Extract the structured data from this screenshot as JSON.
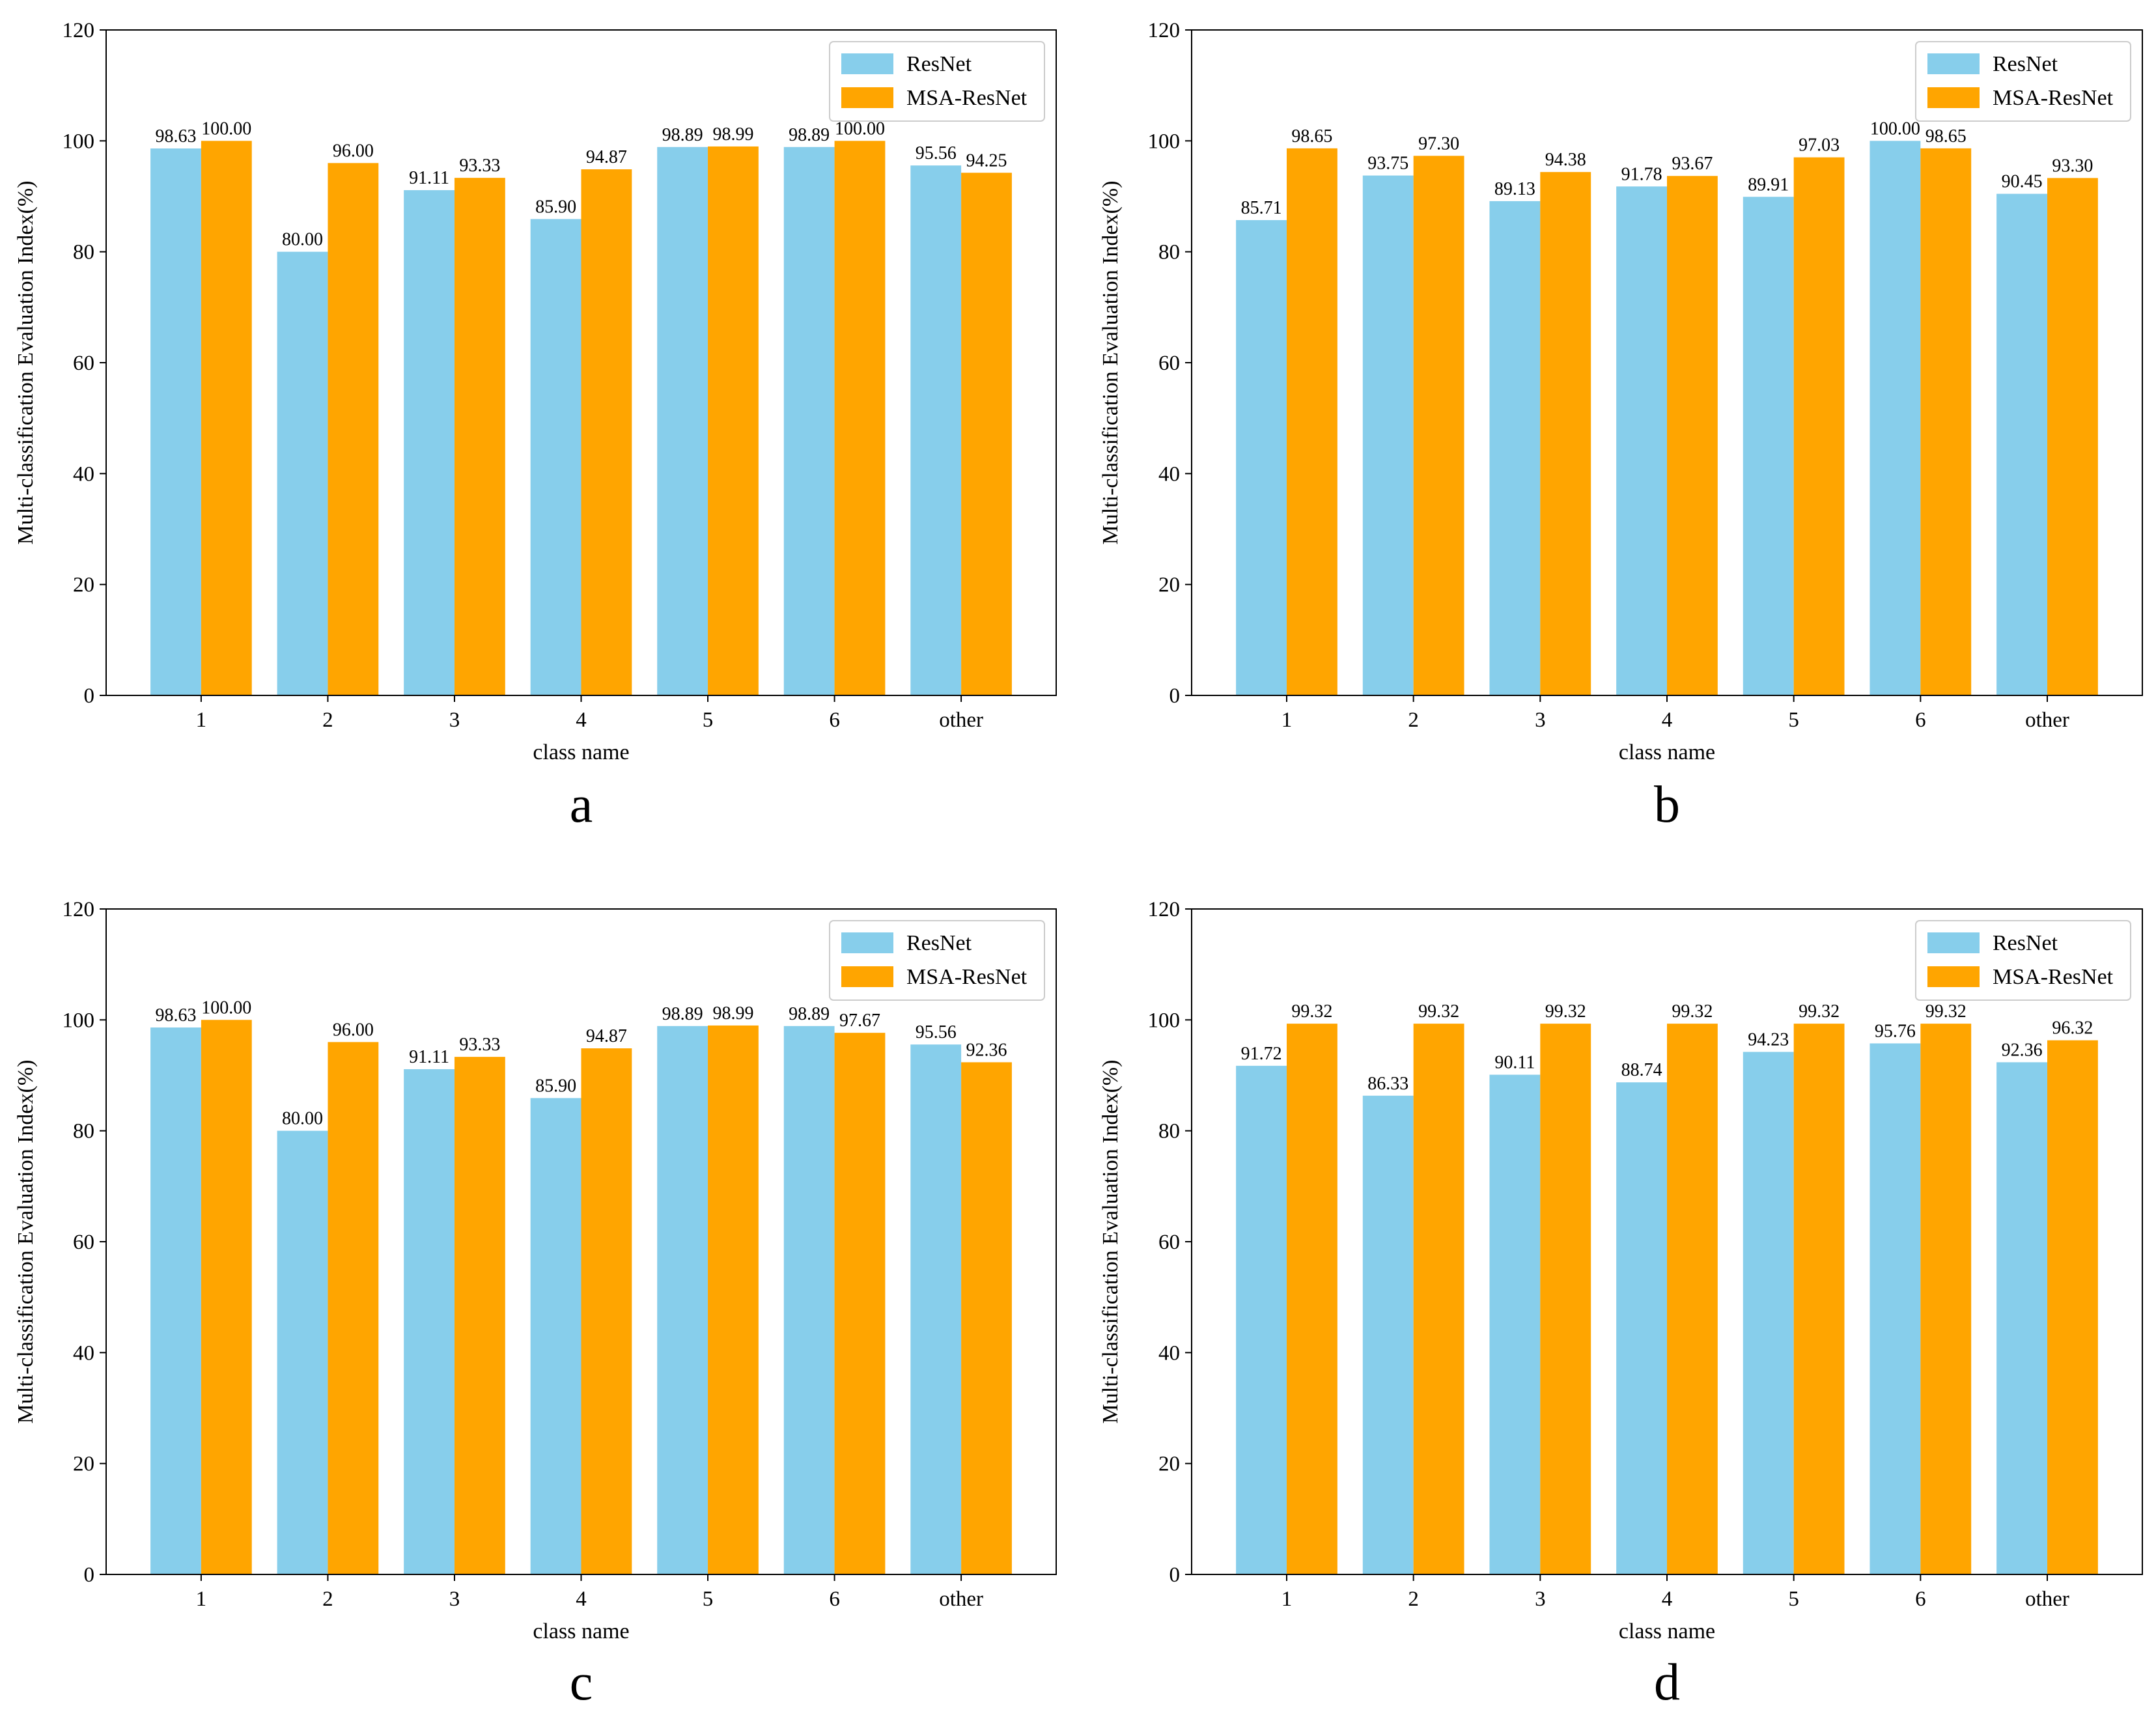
{
  "chart_data": [
    {
      "type": "bar",
      "panel": "a",
      "categories": [
        "1",
        "2",
        "3",
        "4",
        "5",
        "6",
        "other"
      ],
      "series": [
        {
          "name": "ResNet",
          "values": [
            98.63,
            80.0,
            91.11,
            85.9,
            98.89,
            98.89,
            95.56
          ],
          "labels": [
            "98.63",
            "80.00",
            "91.11",
            "85.90",
            "98.89",
            "98.89",
            "95.56"
          ]
        },
        {
          "name": "MSA-ResNet",
          "values": [
            100.0,
            96.0,
            93.33,
            94.87,
            98.99,
            100.0,
            94.25
          ],
          "labels": [
            "100.00",
            "96.00",
            "93.33",
            "94.87",
            "98.99",
            "100.00",
            "94.25"
          ]
        }
      ],
      "xlabel": "class name",
      "ylabel": "Multi-classification Evaluation Index(%)",
      "ylim": [
        0,
        120
      ],
      "yticks": [
        "0",
        "20",
        "40",
        "60",
        "80",
        "100",
        "120"
      ],
      "legend": "top-right"
    },
    {
      "type": "bar",
      "panel": "b",
      "categories": [
        "1",
        "2",
        "3",
        "4",
        "5",
        "6",
        "other"
      ],
      "series": [
        {
          "name": "ResNet",
          "values": [
            85.71,
            93.75,
            89.13,
            91.78,
            89.91,
            100.0,
            90.45
          ],
          "labels": [
            "85.71",
            "93.75",
            "89.13",
            "91.78",
            "89.91",
            "100.00",
            "90.45"
          ]
        },
        {
          "name": "MSA-ResNet",
          "values": [
            98.65,
            97.3,
            94.38,
            93.67,
            97.03,
            98.65,
            93.3
          ],
          "labels": [
            "98.65",
            "97.30",
            "94.38",
            "93.67",
            "97.03",
            "98.65",
            "93.30"
          ]
        }
      ],
      "xlabel": "class name",
      "ylabel": "Multi-classification Evaluation Index(%)",
      "ylim": [
        0,
        120
      ],
      "yticks": [
        "0",
        "20",
        "40",
        "60",
        "80",
        "100",
        "120"
      ],
      "legend": "top-right"
    },
    {
      "type": "bar",
      "panel": "c",
      "categories": [
        "1",
        "2",
        "3",
        "4",
        "5",
        "6",
        "other"
      ],
      "series": [
        {
          "name": "ResNet",
          "values": [
            98.63,
            80.0,
            91.11,
            85.9,
            98.89,
            98.89,
            95.56
          ],
          "labels": [
            "98.63",
            "80.00",
            "91.11",
            "85.90",
            "98.89",
            "98.89",
            "95.56"
          ]
        },
        {
          "name": "MSA-ResNet",
          "values": [
            100.0,
            96.0,
            93.33,
            94.87,
            98.99,
            97.67,
            92.36
          ],
          "labels": [
            "100.00",
            "96.00",
            "93.33",
            "94.87",
            "98.99",
            "97.67",
            "92.36"
          ]
        }
      ],
      "xlabel": "class name",
      "ylabel": "Multi-classification Evaluation Index(%)",
      "ylim": [
        0,
        120
      ],
      "yticks": [
        "0",
        "20",
        "40",
        "60",
        "80",
        "100",
        "120"
      ],
      "legend": "top-right"
    },
    {
      "type": "bar",
      "panel": "d",
      "categories": [
        "1",
        "2",
        "3",
        "4",
        "5",
        "6",
        "other"
      ],
      "series": [
        {
          "name": "ResNet",
          "values": [
            91.72,
            86.33,
            90.11,
            88.74,
            94.23,
            95.76,
            92.36
          ],
          "labels": [
            "91.72",
            "86.33",
            "90.11",
            "88.74",
            "94.23",
            "95.76",
            "92.36"
          ]
        },
        {
          "name": "MSA-ResNet",
          "values": [
            99.32,
            99.32,
            99.32,
            99.32,
            99.32,
            99.32,
            96.32
          ],
          "labels": [
            "99.32",
            "99.32",
            "99.32",
            "99.32",
            "99.32",
            "99.32",
            "96.32"
          ]
        }
      ],
      "xlabel": "class name",
      "ylabel": "Multi-classification Evaluation Index(%)",
      "ylim": [
        0,
        120
      ],
      "yticks": [
        "0",
        "20",
        "40",
        "60",
        "80",
        "100",
        "120"
      ],
      "legend": "top-right"
    }
  ],
  "colors": {
    "ResNet": "#87ceeb",
    "MSA-ResNet": "#ffa500"
  }
}
